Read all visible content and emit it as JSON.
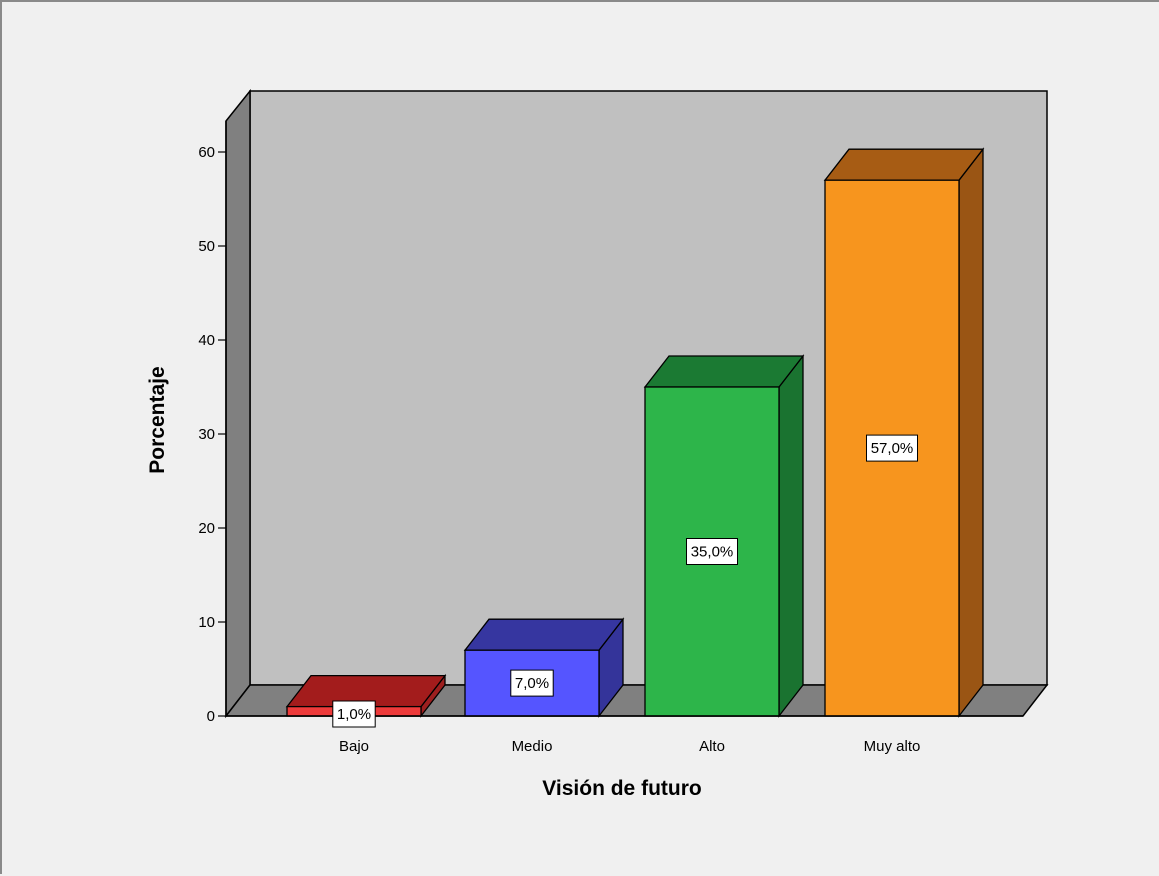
{
  "chart_data": {
    "type": "bar",
    "style": "3d",
    "categories": [
      "Bajo",
      "Medio",
      "Alto",
      "Muy alto"
    ],
    "values": [
      1.0,
      7.0,
      35.0,
      57.0
    ],
    "data_labels": [
      "1,0%",
      "7,0%",
      "35,0%",
      "57,0%"
    ],
    "colors": {
      "front": [
        "#ee3b3b",
        "#5555ff",
        "#2db54a",
        "#f7951e"
      ],
      "top": [
        "#a31c1c",
        "#3636a0",
        "#1b7a33",
        "#a75c14"
      ],
      "side": [
        "#9d1f1f",
        "#34349a",
        "#1a7330",
        "#9a5514"
      ]
    },
    "xlabel": "Visión de futuro",
    "ylabel": "Porcentaje",
    "ylim": [
      0,
      60
    ],
    "yticks": [
      0,
      10,
      20,
      30,
      40,
      50,
      60
    ],
    "grid": false,
    "legend": "none",
    "wall_color": "#c0c0c0",
    "floor_color": "#808080",
    "side_wall_color": "#808080",
    "background": "#f0f0f0"
  }
}
